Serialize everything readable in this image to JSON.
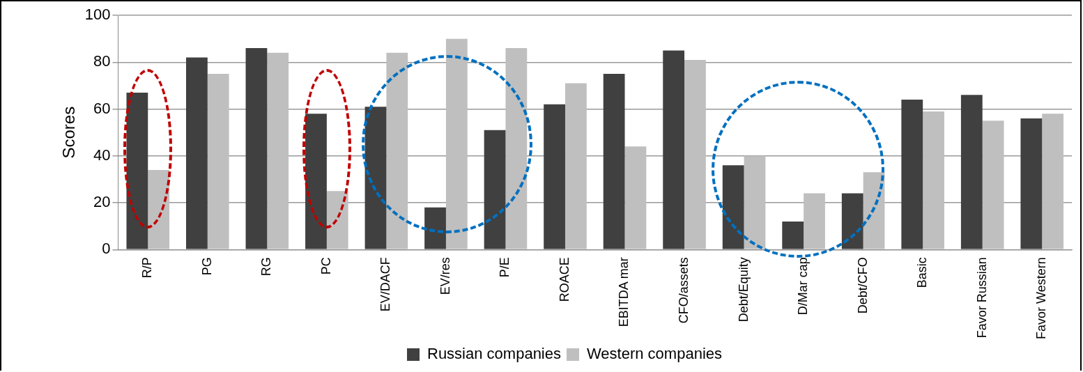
{
  "chart_data": {
    "type": "bar",
    "ylabel": "Scores",
    "categories": [
      "R/P",
      "PG",
      "RG",
      "PC",
      "EV/DACF",
      "EV/res",
      "P/E",
      "ROACE",
      "EBITDA mar",
      "CFO/assets",
      "Debt/Equity",
      "D/Mar cap",
      "Debt/CFO",
      "Basic",
      "Favor Russian",
      "Favor Western"
    ],
    "series": [
      {
        "name": "Russian companies",
        "color": "#404040",
        "values": [
          67,
          82,
          86,
          58,
          61,
          18,
          51,
          62,
          75,
          85,
          36,
          12,
          24,
          64,
          66,
          56
        ]
      },
      {
        "name": "Western companies",
        "color": "#bfbfbf",
        "values": [
          34,
          75,
          84,
          25,
          84,
          90,
          86,
          71,
          44,
          81,
          40,
          24,
          33,
          59,
          55,
          58
        ]
      }
    ],
    "ylim": [
      0,
      100
    ],
    "yticks": [
      0,
      20,
      40,
      60,
      80,
      100
    ],
    "grid": "y",
    "legend": "bottom"
  }
}
